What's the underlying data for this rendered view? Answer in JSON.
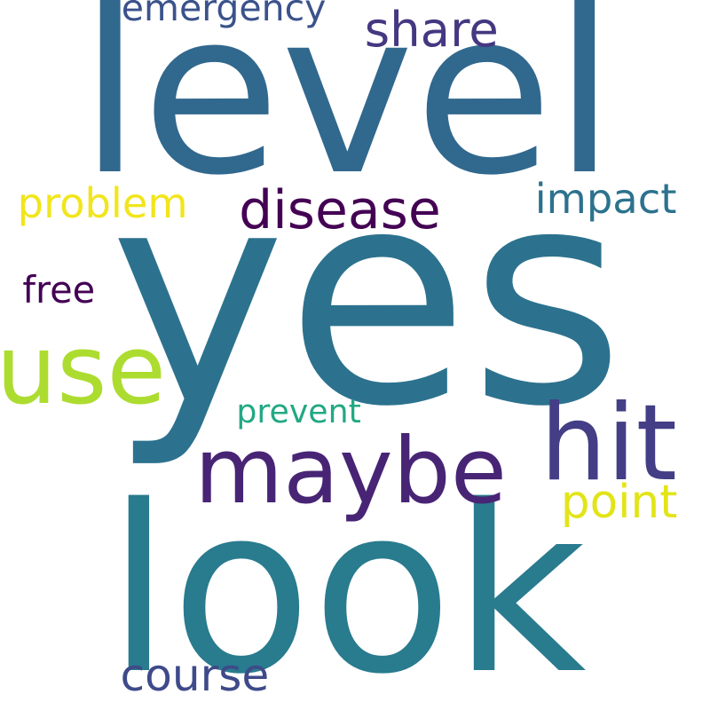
{
  "words": [
    {
      "key": "level",
      "text": "level",
      "color": "#31688e"
    },
    {
      "key": "yes",
      "text": "yes",
      "color": "#2c728e"
    },
    {
      "key": "look",
      "text": "look",
      "color": "#297b8e"
    },
    {
      "key": "maybe",
      "text": "maybe",
      "color": "#482475"
    },
    {
      "key": "hit",
      "text": "hit",
      "color": "#433e85"
    },
    {
      "key": "use",
      "text": "use",
      "color": "#addc30"
    },
    {
      "key": "disease",
      "text": "disease",
      "color": "#440154"
    },
    {
      "key": "problem",
      "text": "problem",
      "color": "#f1e51d"
    },
    {
      "key": "impact",
      "text": "impact",
      "color": "#2c728e"
    },
    {
      "key": "point",
      "text": "point",
      "color": "#e2e418"
    },
    {
      "key": "emergency",
      "text": "emergency",
      "color": "#3b528b"
    },
    {
      "key": "share",
      "text": "share",
      "color": "#453781"
    },
    {
      "key": "free",
      "text": "free",
      "color": "#440154"
    },
    {
      "key": "prevent",
      "text": "prevent",
      "color": "#22a884"
    },
    {
      "key": "course",
      "text": "course",
      "color": "#3e4a89"
    }
  ]
}
